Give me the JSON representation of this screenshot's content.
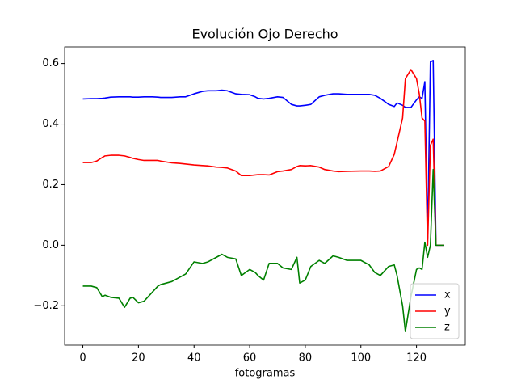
{
  "chart_data": {
    "type": "line",
    "title": "Evolución Ojo Derecho",
    "xlabel": "fotogramas",
    "x": [
      0,
      3,
      5,
      7,
      8,
      10,
      13,
      15,
      17,
      18,
      20,
      22,
      25,
      27,
      28,
      30,
      32,
      35,
      37,
      40,
      43,
      45,
      48,
      50,
      52,
      55,
      57,
      60,
      62,
      63,
      65,
      67,
      70,
      72,
      75,
      77,
      78,
      80,
      82,
      85,
      87,
      90,
      92,
      95,
      100,
      103,
      105,
      107,
      110,
      112,
      113,
      115,
      116,
      118,
      120,
      121,
      122,
      123,
      124,
      125,
      126,
      127,
      130
    ],
    "series": [
      {
        "name": "x",
        "color": "#0000ff",
        "values": [
          0.483,
          0.484,
          0.484,
          0.485,
          0.486,
          0.489,
          0.49,
          0.49,
          0.49,
          0.489,
          0.489,
          0.49,
          0.49,
          0.489,
          0.488,
          0.488,
          0.488,
          0.49,
          0.49,
          0.5,
          0.508,
          0.51,
          0.51,
          0.512,
          0.51,
          0.5,
          0.498,
          0.497,
          0.49,
          0.485,
          0.483,
          0.485,
          0.49,
          0.488,
          0.465,
          0.46,
          0.46,
          0.462,
          0.465,
          0.49,
          0.495,
          0.5,
          0.5,
          0.498,
          0.498,
          0.498,
          0.495,
          0.485,
          0.465,
          0.458,
          0.47,
          0.462,
          0.455,
          0.455,
          0.48,
          0.49,
          0.485,
          0.54,
          0.02,
          0.605,
          0.61,
          0.0,
          0.0
        ]
      },
      {
        "name": "y",
        "color": "#ff0000",
        "values": [
          0.273,
          0.273,
          0.278,
          0.29,
          0.295,
          0.297,
          0.297,
          0.295,
          0.29,
          0.287,
          0.283,
          0.28,
          0.28,
          0.28,
          0.278,
          0.275,
          0.272,
          0.27,
          0.268,
          0.265,
          0.263,
          0.262,
          0.258,
          0.257,
          0.255,
          0.245,
          0.23,
          0.23,
          0.232,
          0.233,
          0.233,
          0.232,
          0.243,
          0.245,
          0.25,
          0.26,
          0.263,
          0.262,
          0.263,
          0.258,
          0.25,
          0.245,
          0.243,
          0.244,
          0.245,
          0.245,
          0.244,
          0.245,
          0.26,
          0.3,
          0.34,
          0.42,
          0.55,
          0.58,
          0.55,
          0.5,
          0.42,
          0.41,
          0.0,
          0.33,
          0.35,
          0.0,
          0.0
        ]
      },
      {
        "name": "z",
        "color": "#008000",
        "values": [
          -0.135,
          -0.135,
          -0.14,
          -0.17,
          -0.165,
          -0.172,
          -0.175,
          -0.205,
          -0.175,
          -0.172,
          -0.19,
          -0.185,
          -0.155,
          -0.135,
          -0.13,
          -0.125,
          -0.12,
          -0.105,
          -0.095,
          -0.055,
          -0.06,
          -0.055,
          -0.04,
          -0.03,
          -0.04,
          -0.045,
          -0.1,
          -0.08,
          -0.09,
          -0.1,
          -0.115,
          -0.06,
          -0.06,
          -0.075,
          -0.08,
          -0.04,
          -0.125,
          -0.115,
          -0.07,
          -0.05,
          -0.06,
          -0.035,
          -0.04,
          -0.05,
          -0.05,
          -0.065,
          -0.09,
          -0.1,
          -0.07,
          -0.065,
          -0.1,
          -0.2,
          -0.285,
          -0.17,
          -0.08,
          -0.075,
          -0.08,
          0.01,
          -0.04,
          0.0,
          0.25,
          0.0,
          0.0
        ]
      }
    ],
    "xlim": [
      -6.55,
      137.55
    ],
    "xticks": [
      0,
      20,
      40,
      60,
      80,
      100,
      120
    ],
    "ylim": [
      -0.33,
      0.655
    ],
    "yticks": [
      {
        "value": -0.2,
        "label": "−0.2"
      },
      {
        "value": 0,
        "label": "0.0"
      },
      {
        "value": 0.2,
        "label": "0.2"
      },
      {
        "value": 0.4,
        "label": "0.4"
      },
      {
        "value": 0.6,
        "label": "0.6"
      }
    ],
    "legend": "lower right"
  }
}
